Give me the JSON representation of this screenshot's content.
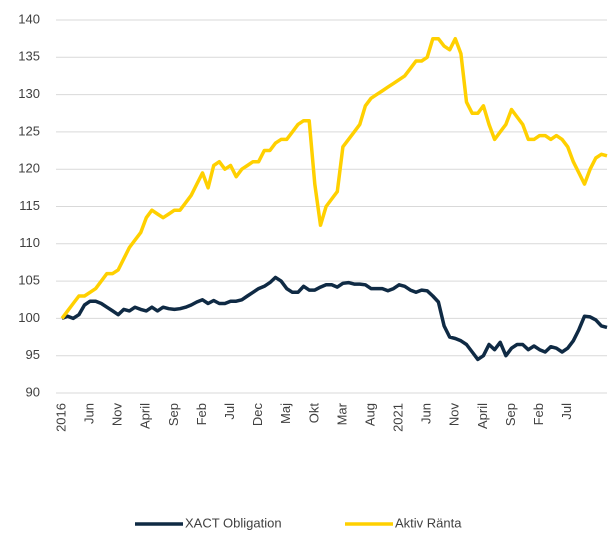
{
  "chart_data": {
    "type": "line",
    "categories": [
      "2016",
      null,
      null,
      null,
      null,
      "Jun",
      null,
      null,
      null,
      null,
      "Nov",
      null,
      null,
      null,
      null,
      "April",
      null,
      null,
      null,
      null,
      "Sep",
      null,
      null,
      null,
      null,
      "Feb",
      null,
      null,
      null,
      null,
      "Jul",
      null,
      null,
      null,
      null,
      "Dec",
      null,
      null,
      null,
      null,
      "Maj",
      null,
      null,
      null,
      null,
      "Okt",
      null,
      null,
      null,
      null,
      "Mar",
      null,
      null,
      null,
      null,
      "Aug",
      null,
      null,
      null,
      null,
      "2021",
      null,
      null,
      null,
      null,
      "Jun",
      null,
      null,
      null,
      null,
      "Nov",
      null,
      null,
      null,
      null,
      "April",
      null,
      null,
      null,
      null,
      "Sep",
      null,
      null,
      null,
      null,
      "Feb",
      null,
      null,
      null,
      null,
      "Jul",
      null,
      null,
      null,
      null,
      null,
      null,
      null
    ],
    "series": [
      {
        "name": "XACT Obligation",
        "color": "#0f2a44",
        "values": [
          100,
          100.3,
          100,
          100.5,
          101.8,
          102.3,
          102.3,
          102,
          101.5,
          101,
          100.5,
          101.2,
          101,
          101.5,
          101.2,
          101,
          101.5,
          101,
          101.5,
          101.3,
          101.2,
          101.3,
          101.5,
          101.8,
          102.2,
          102.5,
          102,
          102.4,
          102,
          102,
          102.3,
          102.3,
          102.5,
          103,
          103.5,
          104,
          104.3,
          104.8,
          105.5,
          105,
          104,
          103.5,
          103.5,
          104.3,
          103.8,
          103.8,
          104.2,
          104.5,
          104.5,
          104.2,
          104.7,
          104.8,
          104.6,
          104.6,
          104.5,
          104,
          104,
          104,
          103.7,
          104,
          104.5,
          104.3,
          103.8,
          103.5,
          103.8,
          103.7,
          103,
          102.2,
          99,
          97.5,
          97.3,
          97,
          96.5,
          95.5,
          94.5,
          95,
          96.5,
          95.8,
          96.8,
          95,
          96,
          96.5,
          96.5,
          95.8,
          96.3,
          95.8,
          95.5,
          96.2,
          96,
          95.5,
          96,
          97,
          98.5,
          100.3,
          100.2,
          99.8,
          99,
          98.8
        ]
      },
      {
        "name": "Aktiv Ränta",
        "color": "#ffd000",
        "values": [
          100,
          101,
          102,
          103,
          103,
          103.5,
          104,
          105,
          106,
          106,
          106.5,
          108,
          109.5,
          110.5,
          111.5,
          113.5,
          114.5,
          114,
          113.5,
          114,
          114.5,
          114.5,
          115.5,
          116.5,
          118,
          119.5,
          117.5,
          120.5,
          121,
          120,
          120.5,
          119,
          120,
          120.5,
          121,
          121,
          122.5,
          122.5,
          123.5,
          124,
          124,
          125,
          126,
          126.5,
          126.5,
          118,
          112.5,
          115,
          116,
          117,
          123,
          124,
          125,
          126,
          128.5,
          129.5,
          130,
          130.5,
          131,
          131.5,
          132,
          132.5,
          133.5,
          134.5,
          134.5,
          135,
          137.5,
          137.5,
          136.5,
          136,
          137.5,
          135.5,
          129,
          127.5,
          127.5,
          128.5,
          126,
          124,
          125,
          126,
          128,
          127,
          126,
          124,
          124,
          124.5,
          124.5,
          124,
          124.5,
          124,
          123,
          121,
          119.5,
          118,
          120,
          121.5,
          122,
          121.8
        ]
      }
    ],
    "ylim": [
      90,
      140
    ],
    "yticks": [
      90,
      95,
      100,
      105,
      110,
      115,
      120,
      125,
      130,
      135,
      140
    ],
    "grid": true,
    "legend": "bottom"
  }
}
